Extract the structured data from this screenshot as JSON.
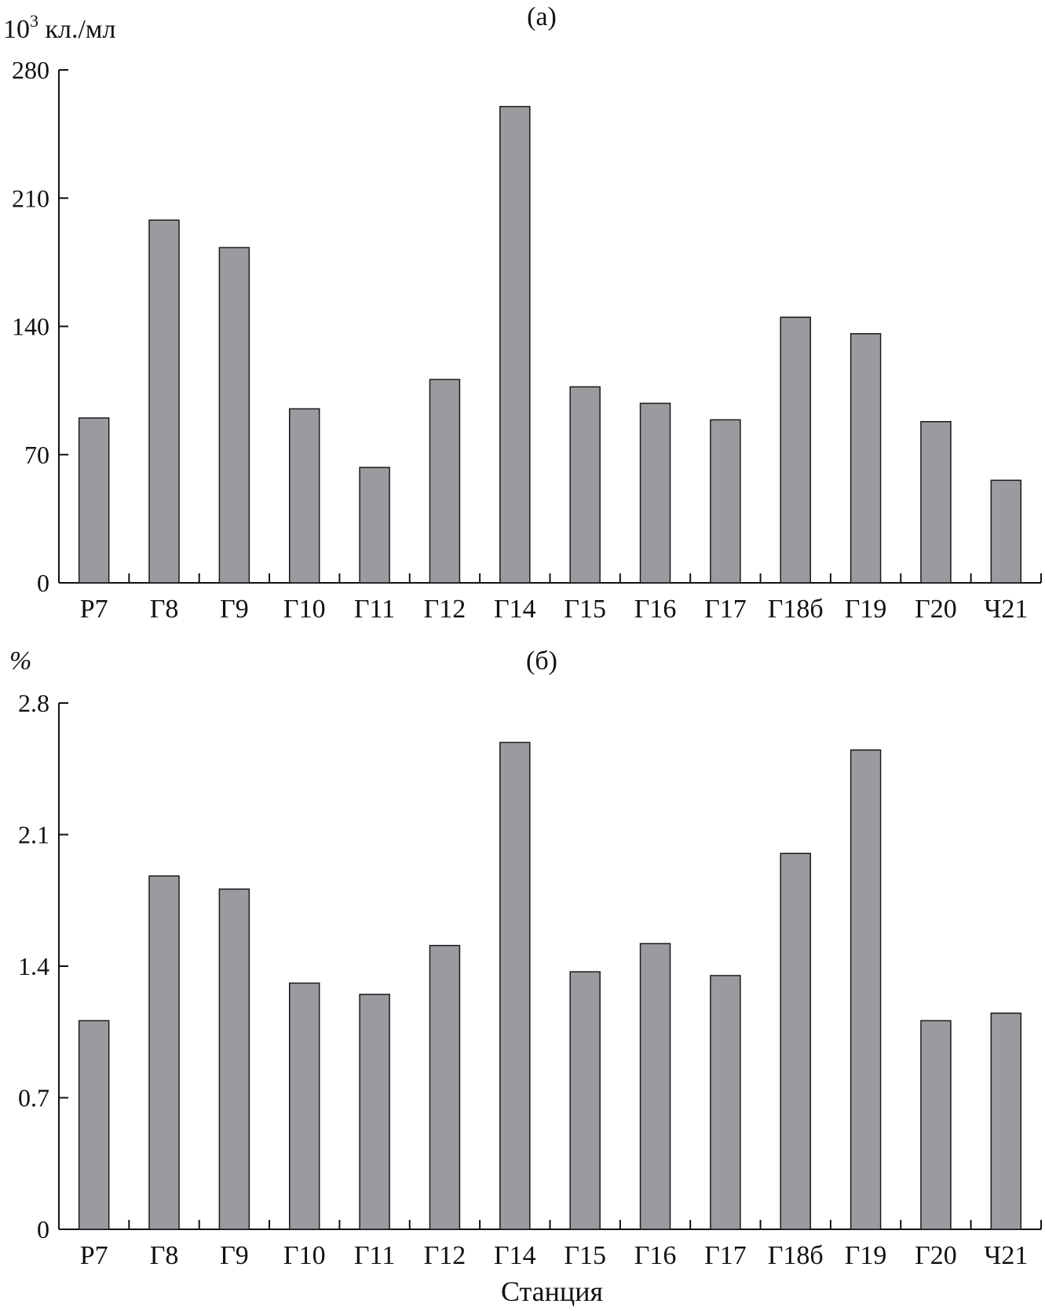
{
  "figure": {
    "xlabel": "Станция",
    "bar_color": "#9a9b9f",
    "edge_color": "#1a1a1a"
  },
  "chart_data": [
    {
      "type": "bar",
      "panel_label": "(a)",
      "ylabel_base": "10",
      "ylabel_exp": "3",
      "ylabel_unit": " кл./мл",
      "ylim": [
        0,
        280
      ],
      "yticks": [
        0,
        70,
        140,
        210,
        280
      ],
      "ytick_labels": [
        "0",
        "70",
        "140",
        "210",
        "280"
      ],
      "grid": false,
      "categories": [
        "Р7",
        "Г8",
        "Г9",
        "Г10",
        "Г11",
        "Г12",
        "Г14",
        "Г15",
        "Г16",
        "Г17",
        "Г18б",
        "Г19",
        "Г20",
        "Ч21"
      ],
      "values": [
        90,
        198,
        183,
        95,
        63,
        111,
        260,
        107,
        98,
        89,
        145,
        136,
        88,
        56
      ]
    },
    {
      "type": "bar",
      "panel_label": "(б)",
      "ylabel": "%",
      "ylim": [
        0,
        2.8
      ],
      "yticks": [
        0,
        0.7,
        1.4,
        2.1,
        2.8
      ],
      "ytick_labels": [
        "0",
        "0.7",
        "1.4",
        "2.1",
        "2.8"
      ],
      "grid": false,
      "categories": [
        "Р7",
        "Г8",
        "Г9",
        "Г10",
        "Г11",
        "Г12",
        "Г14",
        "Г15",
        "Г16",
        "Г17",
        "Г18б",
        "Г19",
        "Г20",
        "Ч21"
      ],
      "values": [
        1.11,
        1.88,
        1.81,
        1.31,
        1.25,
        1.51,
        2.59,
        1.37,
        1.52,
        1.35,
        2.0,
        2.55,
        1.11,
        1.15
      ]
    }
  ]
}
